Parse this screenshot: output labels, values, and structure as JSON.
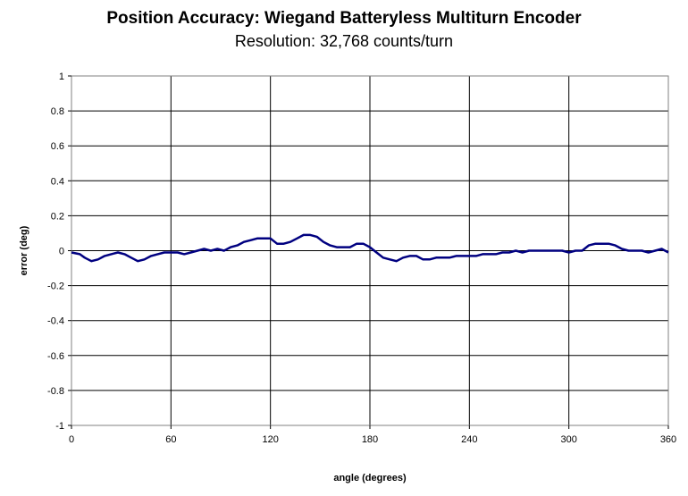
{
  "chart_data": {
    "type": "line",
    "title": "Position Accuracy: Wiegand Batteryless Multiturn Encoder",
    "subtitle": "Resolution: 32,768 counts/turn",
    "xlabel": "angle (degrees)",
    "ylabel": "error (deg)",
    "xlim": [
      0,
      360
    ],
    "ylim": [
      -1,
      1
    ],
    "xticks": [
      0,
      60,
      120,
      180,
      240,
      300,
      360
    ],
    "yticks": [
      -1,
      -0.8,
      -0.6,
      -0.4,
      -0.2,
      0,
      0.2,
      0.4,
      0.6,
      0.8,
      1
    ],
    "ytick_labels": [
      "-1",
      "-0.8",
      "-0.6",
      "-0.4",
      "-0.2",
      "0",
      "0.2",
      "0.4",
      "0.6",
      "0.8",
      "1"
    ],
    "grid": true,
    "line_color": "#000080",
    "series": [
      {
        "x": [
          0,
          5,
          8,
          12,
          16,
          20,
          24,
          28,
          32,
          36,
          40,
          44,
          48,
          52,
          56,
          60,
          64,
          68,
          72,
          76,
          80,
          84,
          88,
          92,
          96,
          100,
          104,
          108,
          112,
          116,
          120,
          124,
          128,
          132,
          136,
          140,
          144,
          148,
          152,
          156,
          160,
          164,
          168,
          172,
          176,
          180,
          184,
          188,
          192,
          196,
          200,
          204,
          208,
          212,
          216,
          220,
          224,
          228,
          232,
          236,
          240,
          244,
          248,
          252,
          256,
          260,
          264,
          268,
          272,
          276,
          280,
          284,
          288,
          292,
          296,
          300,
          304,
          308,
          312,
          316,
          320,
          324,
          328,
          332,
          336,
          340,
          344,
          348,
          352,
          356,
          360
        ],
        "y": [
          -0.01,
          -0.02,
          -0.04,
          -0.06,
          -0.05,
          -0.03,
          -0.02,
          -0.01,
          -0.02,
          -0.04,
          -0.06,
          -0.05,
          -0.03,
          -0.02,
          -0.01,
          -0.01,
          -0.01,
          -0.02,
          -0.01,
          0.0,
          0.01,
          0.0,
          0.01,
          0.0,
          0.02,
          0.03,
          0.05,
          0.06,
          0.07,
          0.07,
          0.07,
          0.04,
          0.04,
          0.05,
          0.07,
          0.09,
          0.09,
          0.08,
          0.05,
          0.03,
          0.02,
          0.02,
          0.02,
          0.04,
          0.04,
          0.02,
          -0.01,
          -0.04,
          -0.05,
          -0.06,
          -0.04,
          -0.03,
          -0.03,
          -0.05,
          -0.05,
          -0.04,
          -0.04,
          -0.04,
          -0.03,
          -0.03,
          -0.03,
          -0.03,
          -0.02,
          -0.02,
          -0.02,
          -0.01,
          -0.01,
          0.0,
          -0.01,
          0.0,
          0.0,
          0.0,
          0.0,
          0.0,
          0.0,
          -0.01,
          0.0,
          0.0,
          0.03,
          0.04,
          0.04,
          0.04,
          0.03,
          0.01,
          0.0,
          0.0,
          0.0,
          -0.01,
          0.0,
          0.01,
          -0.01
        ]
      }
    ]
  }
}
